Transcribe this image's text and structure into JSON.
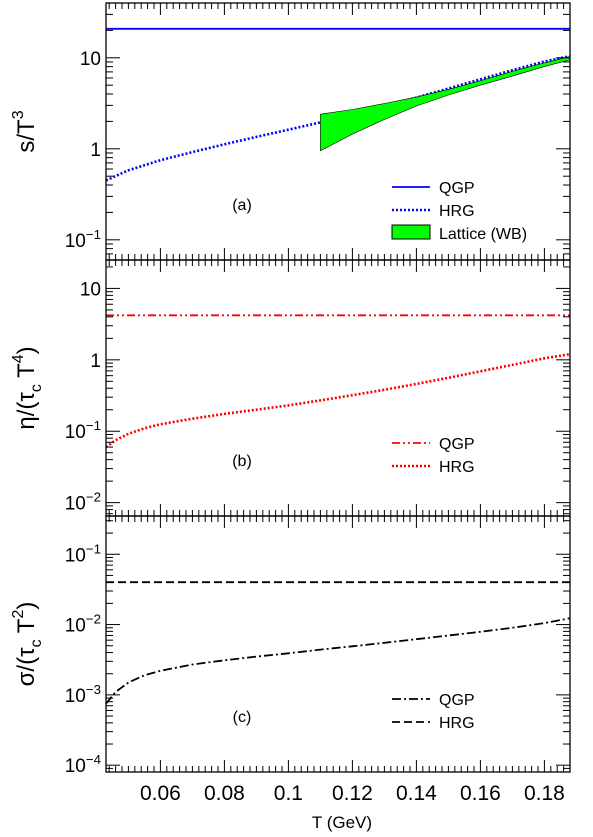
{
  "figure": {
    "xlabel": "T (GeV)",
    "xticks": [
      "0.06",
      "0.08",
      "0.1",
      "0.12",
      "0.14",
      "0.16",
      "0.18"
    ]
  },
  "chart_data": [
    {
      "type": "line",
      "panel_tag": "(a)",
      "ylabel_base": "s/T",
      "ylabel_sup": "3",
      "yscale": "log",
      "ylim": [
        0.06,
        40
      ],
      "xlim": [
        0.043,
        0.188
      ],
      "yticks": [
        {
          "v": 0.1,
          "base": "10",
          "sup": "−1"
        },
        {
          "v": 1,
          "base": "1",
          "sup": ""
        },
        {
          "v": 10,
          "base": "10",
          "sup": ""
        }
      ],
      "legend_position": "bottom-right",
      "series": [
        {
          "name": "QGP",
          "color": "#0000ff",
          "style": "solid",
          "x": [
            0.043,
            0.188
          ],
          "y": [
            20.8,
            20.8
          ]
        },
        {
          "name": "HRG",
          "color": "#0000ff",
          "style": "dotted",
          "x": [
            0.043,
            0.05,
            0.06,
            0.07,
            0.08,
            0.09,
            0.1,
            0.11,
            0.12,
            0.13,
            0.14,
            0.15,
            0.16,
            0.17,
            0.18,
            0.188
          ],
          "y": [
            0.45,
            0.58,
            0.75,
            0.92,
            1.12,
            1.35,
            1.62,
            1.95,
            2.4,
            2.95,
            3.65,
            4.6,
            5.8,
            7.3,
            9.1,
            10.4
          ]
        },
        {
          "name": "Lattice (WB)",
          "color": "#00ff00",
          "style": "band",
          "x": [
            0.11,
            0.12,
            0.13,
            0.14,
            0.15,
            0.16,
            0.17,
            0.18,
            0.188
          ],
          "y_low": [
            0.95,
            1.45,
            2.1,
            2.95,
            3.9,
            5.0,
            6.3,
            8.0,
            9.5
          ],
          "y_high": [
            2.4,
            2.7,
            3.15,
            3.7,
            4.5,
            5.6,
            7.1,
            8.8,
            10.3
          ]
        }
      ]
    },
    {
      "type": "line",
      "panel_tag": "(b)",
      "ylabel_base": "η/(τ",
      "ylabel_sub": "c",
      "ylabel_mid": "T",
      "ylabel_sup": "4",
      "ylabel_end": ")",
      "yscale": "log",
      "ylim": [
        0.0065,
        25
      ],
      "xlim": [
        0.043,
        0.188
      ],
      "yticks": [
        {
          "v": 0.01,
          "base": "10",
          "sup": "−2"
        },
        {
          "v": 0.1,
          "base": "10",
          "sup": "−1"
        },
        {
          "v": 1,
          "base": "1",
          "sup": ""
        },
        {
          "v": 10,
          "base": "10",
          "sup": ""
        }
      ],
      "legend_position": "bottom-right",
      "series": [
        {
          "name": "QGP",
          "color": "#ff0000",
          "style": "dashdotdot",
          "x": [
            0.043,
            0.188
          ],
          "y": [
            4.2,
            4.2
          ]
        },
        {
          "name": "HRG",
          "color": "#ff0000",
          "style": "dotted",
          "x": [
            0.043,
            0.046,
            0.05,
            0.055,
            0.06,
            0.07,
            0.08,
            0.09,
            0.1,
            0.11,
            0.12,
            0.13,
            0.14,
            0.15,
            0.16,
            0.17,
            0.18,
            0.188
          ],
          "y": [
            0.06,
            0.075,
            0.092,
            0.11,
            0.125,
            0.15,
            0.175,
            0.2,
            0.23,
            0.27,
            0.32,
            0.38,
            0.46,
            0.56,
            0.69,
            0.85,
            1.05,
            1.2
          ]
        }
      ]
    },
    {
      "type": "line",
      "panel_tag": "(c)",
      "ylabel_base": "σ/(τ",
      "ylabel_sub": "c",
      "ylabel_mid": "T",
      "ylabel_sup": "2",
      "ylabel_end": ")",
      "yscale": "log",
      "ylim": [
        8e-05,
        0.35
      ],
      "xlim": [
        0.043,
        0.188
      ],
      "yticks": [
        {
          "v": 0.0001,
          "base": "10",
          "sup": "−4"
        },
        {
          "v": 0.001,
          "base": "10",
          "sup": "−3"
        },
        {
          "v": 0.01,
          "base": "10",
          "sup": "−2"
        },
        {
          "v": 0.1,
          "base": "10",
          "sup": "−1"
        }
      ],
      "legend_position": "bottom-right",
      "series": [
        {
          "name": "QGP",
          "color": "#000000",
          "style": "dashdot",
          "x": [
            0.043,
            0.046,
            0.05,
            0.055,
            0.06,
            0.07,
            0.08,
            0.09,
            0.1,
            0.11,
            0.12,
            0.13,
            0.14,
            0.15,
            0.16,
            0.17,
            0.18,
            0.188
          ],
          "y": [
            0.00075,
            0.0011,
            0.0015,
            0.0019,
            0.0022,
            0.0027,
            0.0031,
            0.0035,
            0.0039,
            0.0044,
            0.0049,
            0.0055,
            0.0062,
            0.007,
            0.0079,
            0.009,
            0.0105,
            0.0123
          ]
        },
        {
          "name": "HRG",
          "color": "#000000",
          "style": "dashed",
          "x": [
            0.043,
            0.188
          ],
          "y": [
            0.04,
            0.04
          ]
        }
      ]
    }
  ]
}
